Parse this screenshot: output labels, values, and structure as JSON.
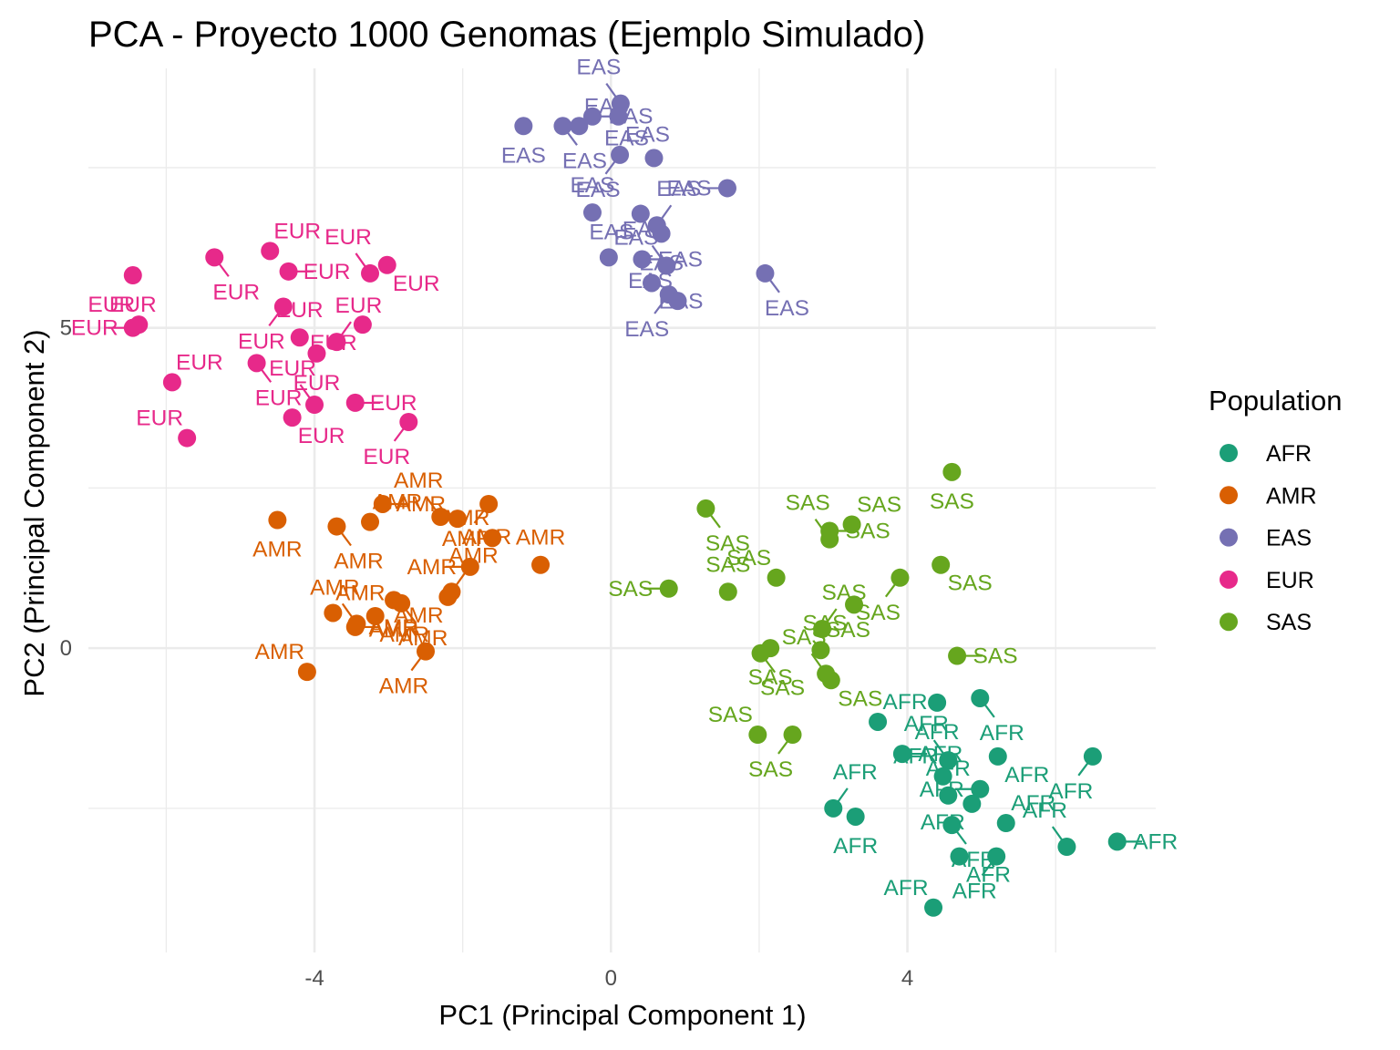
{
  "chart_data": {
    "type": "scatter",
    "title": "PCA - Proyecto 1000 Genomas (Ejemplo Simulado)",
    "xlabel": "PC1 (Principal Component 1)",
    "ylabel": "PC2 (Principal Component 2)",
    "xlim": [
      -7.05,
      7.35
    ],
    "ylim": [
      -4.75,
      9.05
    ],
    "x_ticks": [
      -4,
      0,
      4
    ],
    "y_ticks": [
      0,
      5
    ],
    "x_tick_labels": [
      "-4",
      "0",
      "4"
    ],
    "y_tick_labels": [
      "0",
      "5"
    ],
    "grid": true,
    "legend": {
      "title": "Population",
      "position": "right"
    },
    "series": [
      {
        "name": "AFR",
        "color": "#1b9e77",
        "points": [
          {
            "x": 4.4,
            "y": -0.85
          },
          {
            "x": 4.98,
            "y": -0.78
          },
          {
            "x": 3.6,
            "y": -1.15
          },
          {
            "x": 3.93,
            "y": -1.65
          },
          {
            "x": 4.55,
            "y": -1.75
          },
          {
            "x": 5.22,
            "y": -1.69
          },
          {
            "x": 6.5,
            "y": -1.69
          },
          {
            "x": 4.48,
            "y": -2.0
          },
          {
            "x": 4.98,
            "y": -2.2
          },
          {
            "x": 4.55,
            "y": -2.3
          },
          {
            "x": 4.87,
            "y": -2.43
          },
          {
            "x": 3.0,
            "y": -2.5
          },
          {
            "x": 3.3,
            "y": -2.63
          },
          {
            "x": 4.6,
            "y": -2.76
          },
          {
            "x": 5.33,
            "y": -2.73
          },
          {
            "x": 6.83,
            "y": -3.02
          },
          {
            "x": 6.15,
            "y": -3.1
          },
          {
            "x": 4.7,
            "y": -3.25
          },
          {
            "x": 5.2,
            "y": -3.25
          },
          {
            "x": 4.35,
            "y": -4.05
          }
        ]
      },
      {
        "name": "AMR",
        "color": "#d95f02",
        "points": [
          {
            "x": -4.5,
            "y": 2.0
          },
          {
            "x": -3.7,
            "y": 1.9
          },
          {
            "x": -3.25,
            "y": 1.97
          },
          {
            "x": -3.08,
            "y": 2.25
          },
          {
            "x": -2.3,
            "y": 2.05
          },
          {
            "x": -2.07,
            "y": 2.02
          },
          {
            "x": -1.65,
            "y": 2.25
          },
          {
            "x": -1.6,
            "y": 1.72
          },
          {
            "x": -1.9,
            "y": 1.27
          },
          {
            "x": -0.95,
            "y": 1.3
          },
          {
            "x": -2.2,
            "y": 0.8
          },
          {
            "x": -2.15,
            "y": 0.88
          },
          {
            "x": -2.93,
            "y": 0.75
          },
          {
            "x": -2.83,
            "y": 0.7
          },
          {
            "x": -3.75,
            "y": 0.55
          },
          {
            "x": -3.45,
            "y": 0.33
          },
          {
            "x": -3.43,
            "y": 0.38
          },
          {
            "x": -3.18,
            "y": 0.5
          },
          {
            "x": -2.5,
            "y": -0.05
          },
          {
            "x": -4.1,
            "y": -0.37
          }
        ]
      },
      {
        "name": "EAS",
        "color": "#7570b3",
        "points": [
          {
            "x": -1.18,
            "y": 8.15
          },
          {
            "x": -0.65,
            "y": 8.15
          },
          {
            "x": -0.43,
            "y": 8.15
          },
          {
            "x": -0.25,
            "y": 8.3
          },
          {
            "x": 0.13,
            "y": 8.5
          },
          {
            "x": 0.1,
            "y": 8.3
          },
          {
            "x": 0.12,
            "y": 7.7
          },
          {
            "x": 0.58,
            "y": 7.65
          },
          {
            "x": 1.57,
            "y": 7.18
          },
          {
            "x": -0.25,
            "y": 6.8
          },
          {
            "x": 0.4,
            "y": 6.78
          },
          {
            "x": 0.62,
            "y": 6.6
          },
          {
            "x": 0.68,
            "y": 6.47
          },
          {
            "x": 2.08,
            "y": 5.85
          },
          {
            "x": -0.03,
            "y": 6.1
          },
          {
            "x": 0.42,
            "y": 6.07
          },
          {
            "x": 0.75,
            "y": 5.97
          },
          {
            "x": 0.55,
            "y": 5.7
          },
          {
            "x": 0.78,
            "y": 5.52
          },
          {
            "x": 0.9,
            "y": 5.42
          }
        ]
      },
      {
        "name": "EUR",
        "color": "#e7298a",
        "points": [
          {
            "x": -6.45,
            "y": 5.82
          },
          {
            "x": -5.35,
            "y": 6.1
          },
          {
            "x": -4.6,
            "y": 6.2
          },
          {
            "x": -4.35,
            "y": 5.88
          },
          {
            "x": -3.25,
            "y": 5.85
          },
          {
            "x": -3.02,
            "y": 5.98
          },
          {
            "x": -4.42,
            "y": 5.33
          },
          {
            "x": -6.37,
            "y": 5.05
          },
          {
            "x": -6.45,
            "y": 5.0
          },
          {
            "x": -4.2,
            "y": 4.85
          },
          {
            "x": -3.35,
            "y": 5.05
          },
          {
            "x": -3.7,
            "y": 4.78
          },
          {
            "x": -3.97,
            "y": 4.6
          },
          {
            "x": -4.78,
            "y": 4.45
          },
          {
            "x": -5.92,
            "y": 4.15
          },
          {
            "x": -3.45,
            "y": 3.83
          },
          {
            "x": -4.0,
            "y": 3.8
          },
          {
            "x": -4.3,
            "y": 3.6
          },
          {
            "x": -2.73,
            "y": 3.53
          },
          {
            "x": -5.72,
            "y": 3.28
          }
        ]
      },
      {
        "name": "SAS",
        "color": "#66a61e",
        "points": [
          {
            "x": 4.6,
            "y": 2.75
          },
          {
            "x": 1.28,
            "y": 2.18
          },
          {
            "x": 3.25,
            "y": 1.93
          },
          {
            "x": 2.95,
            "y": 1.83
          },
          {
            "x": 2.95,
            "y": 1.7
          },
          {
            "x": 4.45,
            "y": 1.3
          },
          {
            "x": 3.9,
            "y": 1.1
          },
          {
            "x": 2.23,
            "y": 1.1
          },
          {
            "x": 0.78,
            "y": 0.93
          },
          {
            "x": 1.58,
            "y": 0.88
          },
          {
            "x": 3.28,
            "y": 0.68
          },
          {
            "x": 2.85,
            "y": 0.3
          },
          {
            "x": 2.15,
            "y": 0.0
          },
          {
            "x": 2.02,
            "y": -0.08
          },
          {
            "x": 2.83,
            "y": -0.03
          },
          {
            "x": 4.67,
            "y": -0.12
          },
          {
            "x": 2.9,
            "y": -0.4
          },
          {
            "x": 2.97,
            "y": -0.5
          },
          {
            "x": 2.45,
            "y": -1.35
          },
          {
            "x": 1.98,
            "y": -1.35
          }
        ]
      }
    ]
  }
}
